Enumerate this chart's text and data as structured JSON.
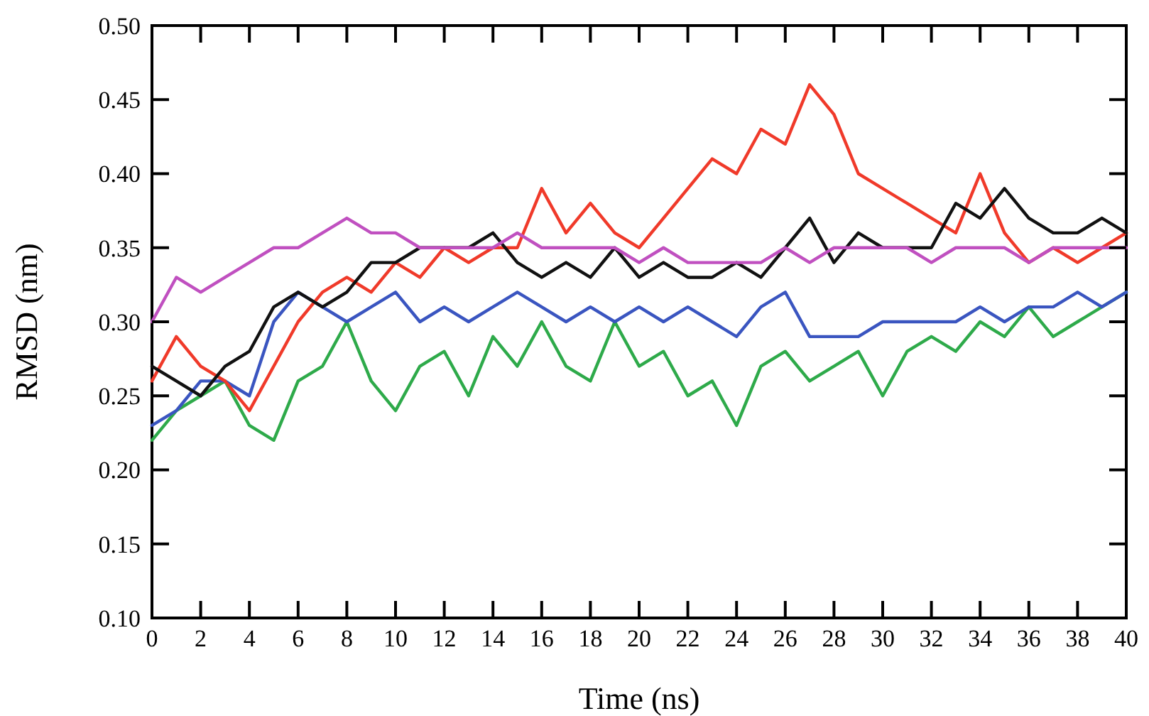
{
  "chart_data": {
    "type": "line",
    "xlabel": "Time (ns)",
    "ylabel": "RMSD (nm)",
    "x": [
      0,
      1,
      2,
      3,
      4,
      5,
      6,
      7,
      8,
      9,
      10,
      11,
      12,
      13,
      14,
      15,
      16,
      17,
      18,
      19,
      20,
      21,
      22,
      23,
      24,
      25,
      26,
      27,
      28,
      29,
      30,
      31,
      32,
      33,
      34,
      35,
      36,
      37,
      38,
      39,
      40
    ],
    "series": [
      {
        "color": "#2eaa4a",
        "values": [
          0.22,
          0.24,
          0.25,
          0.26,
          0.23,
          0.22,
          0.26,
          0.27,
          0.3,
          0.26,
          0.24,
          0.27,
          0.28,
          0.25,
          0.29,
          0.27,
          0.3,
          0.27,
          0.26,
          0.3,
          0.27,
          0.28,
          0.25,
          0.26,
          0.23,
          0.27,
          0.28,
          0.26,
          0.27,
          0.28,
          0.25,
          0.28,
          0.29,
          0.28,
          0.3,
          0.29,
          0.31,
          0.29,
          0.3,
          0.31,
          0.32
        ]
      },
      {
        "color": "#3a55c0",
        "values": [
          0.23,
          0.24,
          0.26,
          0.26,
          0.25,
          0.3,
          0.32,
          0.31,
          0.3,
          0.31,
          0.32,
          0.3,
          0.31,
          0.3,
          0.31,
          0.32,
          0.31,
          0.3,
          0.31,
          0.3,
          0.31,
          0.3,
          0.31,
          0.3,
          0.29,
          0.31,
          0.32,
          0.29,
          0.29,
          0.29,
          0.3,
          0.3,
          0.3,
          0.3,
          0.31,
          0.3,
          0.31,
          0.31,
          0.32,
          0.31,
          0.32
        ]
      },
      {
        "color": "#f03a2a",
        "values": [
          0.26,
          0.29,
          0.27,
          0.26,
          0.24,
          0.27,
          0.3,
          0.32,
          0.33,
          0.32,
          0.34,
          0.33,
          0.35,
          0.34,
          0.35,
          0.35,
          0.39,
          0.36,
          0.38,
          0.36,
          0.35,
          0.37,
          0.39,
          0.41,
          0.4,
          0.43,
          0.42,
          0.46,
          0.44,
          0.4,
          0.39,
          0.38,
          0.37,
          0.36,
          0.4,
          0.36,
          0.34,
          0.35,
          0.34,
          0.35,
          0.36
        ]
      },
      {
        "color": "#111111",
        "values": [
          0.27,
          0.26,
          0.25,
          0.27,
          0.28,
          0.31,
          0.32,
          0.31,
          0.32,
          0.34,
          0.34,
          0.35,
          0.35,
          0.35,
          0.36,
          0.34,
          0.33,
          0.34,
          0.33,
          0.35,
          0.33,
          0.34,
          0.33,
          0.33,
          0.34,
          0.33,
          0.35,
          0.37,
          0.34,
          0.36,
          0.35,
          0.35,
          0.35,
          0.38,
          0.37,
          0.39,
          0.37,
          0.36,
          0.36,
          0.37,
          0.36
        ]
      },
      {
        "color": "#c050c0",
        "values": [
          0.3,
          0.33,
          0.32,
          0.33,
          0.34,
          0.35,
          0.35,
          0.36,
          0.37,
          0.36,
          0.36,
          0.35,
          0.35,
          0.35,
          0.35,
          0.36,
          0.35,
          0.35,
          0.35,
          0.35,
          0.34,
          0.35,
          0.34,
          0.34,
          0.34,
          0.34,
          0.35,
          0.34,
          0.35,
          0.35,
          0.35,
          0.35,
          0.34,
          0.35,
          0.35,
          0.35,
          0.34,
          0.35,
          0.35,
          0.35,
          0.35
        ]
      }
    ],
    "xlim": [
      0,
      40
    ],
    "xticks": [
      0,
      2,
      4,
      6,
      8,
      10,
      12,
      14,
      16,
      18,
      20,
      22,
      24,
      26,
      28,
      30,
      32,
      34,
      36,
      38,
      40
    ],
    "ylim": [
      0.1,
      0.5
    ],
    "yticks": [
      {
        "value": 0.1,
        "label": "0.10"
      },
      {
        "value": 0.15,
        "label": "0.15"
      },
      {
        "value": 0.2,
        "label": "0.20"
      },
      {
        "value": 0.25,
        "label": "0.25"
      },
      {
        "value": 0.3,
        "label": "0.30"
      },
      {
        "value": 0.35,
        "label": "0.35"
      },
      {
        "value": 0.4,
        "label": "0.40"
      },
      {
        "value": 0.45,
        "label": "0.45"
      },
      {
        "value": 0.5,
        "label": "0.50"
      }
    ],
    "grid": false,
    "marker": "none",
    "line_style": "solid"
  }
}
